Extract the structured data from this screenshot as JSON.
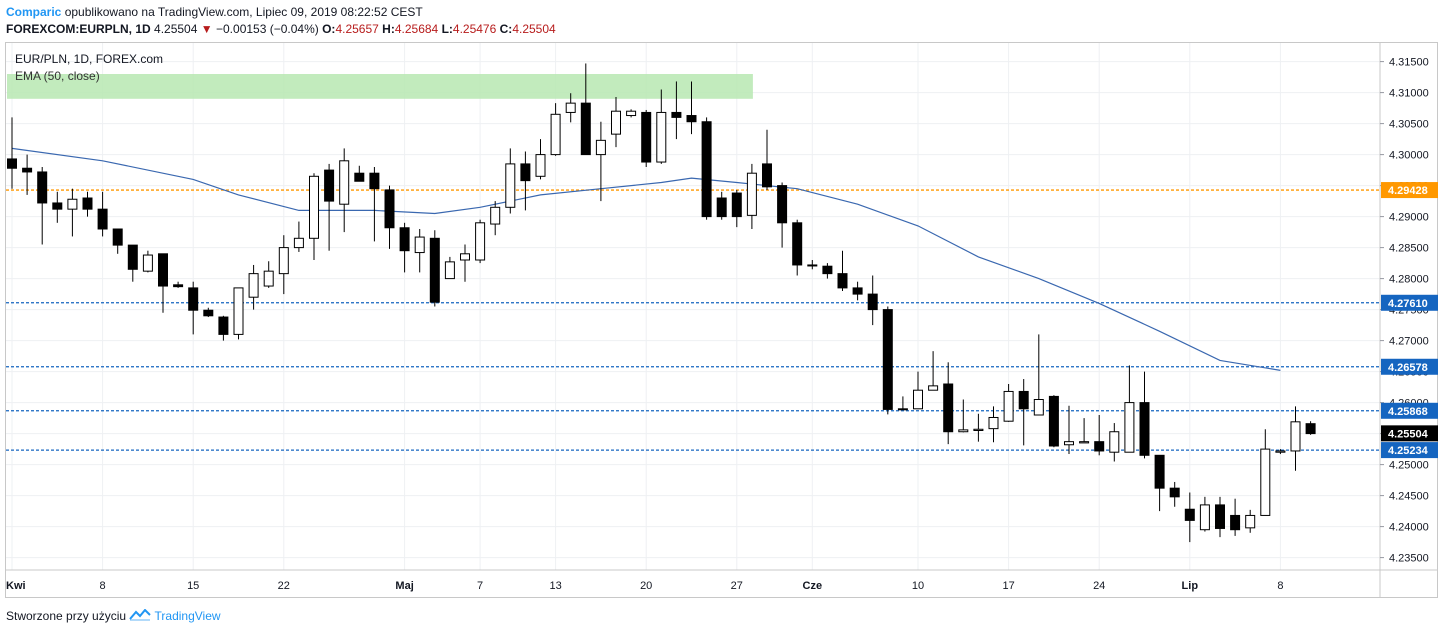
{
  "header": {
    "publisher": "Comparic",
    "published_text": "opublikowano na TradingView.com, Lipiec 09, 2019 08:22:52 CEST",
    "symbol": "FOREXCOM:EURPLN, 1D",
    "last": "4.25504",
    "change": "−0.00153 (−0.04%)",
    "o_label": "O:",
    "o_val": "4.25657",
    "h_label": "H:",
    "h_val": "4.25684",
    "l_label": "L:",
    "l_val": "4.25476",
    "c_label": "C:",
    "c_val": "4.25504"
  },
  "legend": {
    "series": "EUR/PLN, 1D, FOREX.com",
    "indicator": "EMA (50, close)"
  },
  "footer": {
    "text": "Stworzone przy użyciu",
    "brand": "TradingView"
  },
  "chart_data": {
    "type": "candlestick",
    "title": "EUR/PLN, 1D, FOREX.com",
    "ylim": [
      4.233,
      4.318
    ],
    "y_ticks": [
      "4.31500",
      "4.31000",
      "4.30500",
      "4.30000",
      "4.29500",
      "4.29000",
      "4.28500",
      "4.28000",
      "4.27500",
      "4.27000",
      "4.26500",
      "4.26000",
      "4.25500",
      "4.25000",
      "4.24500",
      "4.24000",
      "4.23500"
    ],
    "y_tick_values": [
      4.315,
      4.31,
      4.305,
      4.3,
      4.295,
      4.29,
      4.285,
      4.28,
      4.275,
      4.27,
      4.265,
      4.26,
      4.255,
      4.25,
      4.245,
      4.24,
      4.235
    ],
    "x_ticks": [
      {
        "i": 0,
        "label": "Kwi",
        "bold": true
      },
      {
        "i": 6,
        "label": "8",
        "bold": false
      },
      {
        "i": 12,
        "label": "15",
        "bold": false
      },
      {
        "i": 18,
        "label": "22",
        "bold": false
      },
      {
        "i": 26,
        "label": "Maj",
        "bold": true
      },
      {
        "i": 31,
        "label": "7",
        "bold": false
      },
      {
        "i": 36,
        "label": "13",
        "bold": false
      },
      {
        "i": 42,
        "label": "20",
        "bold": false
      },
      {
        "i": 48,
        "label": "27",
        "bold": false
      },
      {
        "i": 53,
        "label": "Cze",
        "bold": true
      },
      {
        "i": 60,
        "label": "10",
        "bold": false
      },
      {
        "i": 66,
        "label": "17",
        "bold": false
      },
      {
        "i": 72,
        "label": "24",
        "bold": false
      },
      {
        "i": 78,
        "label": "Lip",
        "bold": true
      },
      {
        "i": 84,
        "label": "8",
        "bold": false
      }
    ],
    "candles": [
      [
        4.2993,
        4.2978,
        4.306,
        4.2945
      ],
      [
        4.2978,
        4.2972,
        4.3,
        4.2935
      ],
      [
        4.2972,
        4.2922,
        4.298,
        4.2855
      ],
      [
        4.2922,
        4.2912,
        4.294,
        4.289
      ],
      [
        4.2912,
        4.2928,
        4.2945,
        4.2868
      ],
      [
        4.293,
        4.2912,
        4.294,
        4.29
      ],
      [
        4.2912,
        4.288,
        4.294,
        4.2868
      ],
      [
        4.288,
        4.2854,
        4.288,
        4.284
      ],
      [
        4.2854,
        4.2815,
        4.2854,
        4.2795
      ],
      [
        4.2812,
        4.2838,
        4.2845,
        4.281
      ],
      [
        4.284,
        4.2788,
        4.284,
        4.2745
      ],
      [
        4.279,
        4.2787,
        4.2795,
        4.2785
      ],
      [
        4.2785,
        4.2749,
        4.2795,
        4.271
      ],
      [
        4.2749,
        4.274,
        4.2753,
        4.2738
      ],
      [
        4.2738,
        4.271,
        4.274,
        4.27
      ],
      [
        4.271,
        4.2785,
        4.2785,
        4.2702
      ],
      [
        4.277,
        4.2808,
        4.2822,
        4.275
      ],
      [
        4.2788,
        4.2812,
        4.2828,
        4.2785
      ],
      [
        4.2808,
        4.285,
        4.287,
        4.2775
      ],
      [
        4.285,
        4.2865,
        4.2892,
        4.2843
      ],
      [
        4.2865,
        4.2965,
        4.297,
        4.283
      ],
      [
        4.2975,
        4.2925,
        4.2985,
        4.2845
      ],
      [
        4.292,
        4.299,
        4.301,
        4.2875
      ],
      [
        4.297,
        4.2957,
        4.2982,
        4.296
      ],
      [
        4.297,
        4.2945,
        4.298,
        4.286
      ],
      [
        4.2943,
        4.2882,
        4.295,
        4.2848
      ],
      [
        4.2882,
        4.2845,
        4.289,
        4.281
      ],
      [
        4.2842,
        4.2867,
        4.288,
        4.281
      ],
      [
        4.2865,
        4.2762,
        4.2878,
        4.2755
      ],
      [
        4.28,
        4.2827,
        4.2835,
        4.28
      ],
      [
        4.283,
        4.284,
        4.2855,
        4.2795
      ],
      [
        4.283,
        4.289,
        4.2895,
        4.2825
      ],
      [
        4.2888,
        4.2915,
        4.2925,
        4.287
      ],
      [
        4.2915,
        4.2985,
        4.301,
        4.2905
      ],
      [
        4.2985,
        4.2958,
        4.3005,
        4.291
      ],
      [
        4.2965,
        4.3,
        4.3025,
        4.296
      ],
      [
        4.3,
        4.3065,
        4.3083,
        4.2998
      ],
      [
        4.3068,
        4.3083,
        4.3099,
        4.3052
      ],
      [
        4.3083,
        4.3,
        4.3147,
        4.3
      ],
      [
        4.3,
        4.3023,
        4.3053,
        4.2925
      ],
      [
        4.3033,
        4.307,
        4.3093,
        4.3012
      ],
      [
        4.3063,
        4.307,
        4.3073,
        4.306
      ],
      [
        4.3068,
        4.2988,
        4.3072,
        4.298
      ],
      [
        4.2988,
        4.3068,
        4.3105,
        4.2985
      ],
      [
        4.3068,
        4.306,
        4.3118,
        4.3025
      ],
      [
        4.3063,
        4.3053,
        4.3118,
        4.3033
      ],
      [
        4.3053,
        4.29,
        4.306,
        4.2895
      ],
      [
        4.293,
        4.29,
        4.294,
        4.2895
      ],
      [
        4.2938,
        4.29,
        4.2943,
        4.2883
      ],
      [
        4.2902,
        4.297,
        4.2985,
        4.288
      ],
      [
        4.2985,
        4.2948,
        4.304,
        4.2943
      ],
      [
        4.295,
        4.289,
        4.2955,
        4.285
      ],
      [
        4.289,
        4.2822,
        4.2895,
        4.2805
      ],
      [
        4.2822,
        4.2822,
        4.283,
        4.2815
      ],
      [
        4.282,
        4.2808,
        4.2825,
        4.28
      ],
      [
        4.2808,
        4.2785,
        4.2845,
        4.278
      ],
      [
        4.2785,
        4.2775,
        4.2795,
        4.2765
      ],
      [
        4.2775,
        4.275,
        4.2805,
        4.2725
      ],
      [
        4.275,
        4.2589,
        4.2755,
        4.2581
      ],
      [
        4.259,
        4.259,
        4.261,
        4.259
      ],
      [
        4.259,
        4.262,
        4.265,
        4.259
      ],
      [
        4.262,
        4.2627,
        4.2683,
        4.262
      ],
      [
        4.263,
        4.2553,
        4.2665,
        4.2533
      ],
      [
        4.2553,
        4.2556,
        4.2605,
        4.2552
      ],
      [
        4.2555,
        4.2557,
        4.2582,
        4.2537
      ],
      [
        4.2558,
        4.2576,
        4.2594,
        4.2536
      ],
      [
        4.257,
        4.2618,
        4.263,
        4.2569
      ],
      [
        4.2618,
        4.259,
        4.2638,
        4.2531
      ],
      [
        4.258,
        4.2605,
        4.271,
        4.258
      ],
      [
        4.261,
        4.253,
        4.2612,
        4.2528
      ],
      [
        4.2532,
        4.2537,
        4.2595,
        4.2517
      ],
      [
        4.2535,
        4.2537,
        4.2575,
        4.2535
      ],
      [
        4.2537,
        4.2522,
        4.258,
        4.2515
      ],
      [
        4.252,
        4.2553,
        4.2567,
        4.2505
      ],
      [
        4.252,
        4.26,
        4.266,
        4.252
      ],
      [
        4.26,
        4.2515,
        4.265,
        4.251
      ],
      [
        4.2515,
        4.2462,
        4.2515,
        4.2425
      ],
      [
        4.2462,
        4.2448,
        4.2472,
        4.2432
      ],
      [
        4.2428,
        4.241,
        4.2455,
        4.2375
      ],
      [
        4.2395,
        4.2435,
        4.2448,
        4.2392
      ],
      [
        4.2435,
        4.2397,
        4.2448,
        4.2383
      ],
      [
        4.2418,
        4.2395,
        4.2445,
        4.2385
      ],
      [
        4.2398,
        4.2418,
        4.2427,
        4.239
      ],
      [
        4.2418,
        4.2525,
        4.2557,
        4.2418
      ],
      [
        4.252,
        4.2522,
        4.2525,
        4.2517
      ],
      [
        4.2522,
        4.2569,
        4.2594,
        4.249
      ],
      [
        4.2566,
        4.255,
        4.257,
        4.2548
      ]
    ],
    "ema": [
      [
        0,
        4.301
      ],
      [
        6,
        4.299
      ],
      [
        12,
        4.296
      ],
      [
        15,
        4.2935
      ],
      [
        19,
        4.291
      ],
      [
        24,
        4.291
      ],
      [
        28,
        4.2905
      ],
      [
        31,
        4.2915
      ],
      [
        35,
        4.2935
      ],
      [
        39,
        4.2945
      ],
      [
        43,
        4.2955
      ],
      [
        45,
        4.2962
      ],
      [
        48,
        4.2955
      ],
      [
        52,
        4.2945
      ],
      [
        56,
        4.292
      ],
      [
        60,
        4.2885
      ],
      [
        64,
        4.2835
      ],
      [
        68,
        4.28
      ],
      [
        72,
        4.276
      ],
      [
        76,
        4.2715
      ],
      [
        80,
        4.2668
      ],
      [
        84,
        4.2652
      ]
    ],
    "horizontal_levels": [
      {
        "value": 4.29428,
        "label": "4.29428",
        "color": "#ff9800",
        "dashed": true
      },
      {
        "value": 4.2761,
        "label": "4.27610",
        "color": "#1565c0",
        "dashed": true
      },
      {
        "value": 4.26578,
        "label": "4.26578",
        "color": "#1565c0",
        "dashed": true
      },
      {
        "value": 4.25868,
        "label": "4.25868",
        "color": "#1565c0",
        "dashed": true
      },
      {
        "value": 4.25234,
        "label": "4.25234",
        "color": "#1565c0",
        "dashed": true
      }
    ],
    "last_price": {
      "value": 4.25504,
      "label": "4.25504",
      "color": "#000000"
    },
    "zone": {
      "from_i": 0,
      "to_i": 49,
      "low": 4.309,
      "high": 4.313,
      "color": "#b7e8b2"
    },
    "colors": {
      "up_fill": "#ffffff",
      "down_fill": "#000000",
      "outline": "#000000",
      "ema": "#3a68b0",
      "grid": "#eef0f3"
    }
  }
}
